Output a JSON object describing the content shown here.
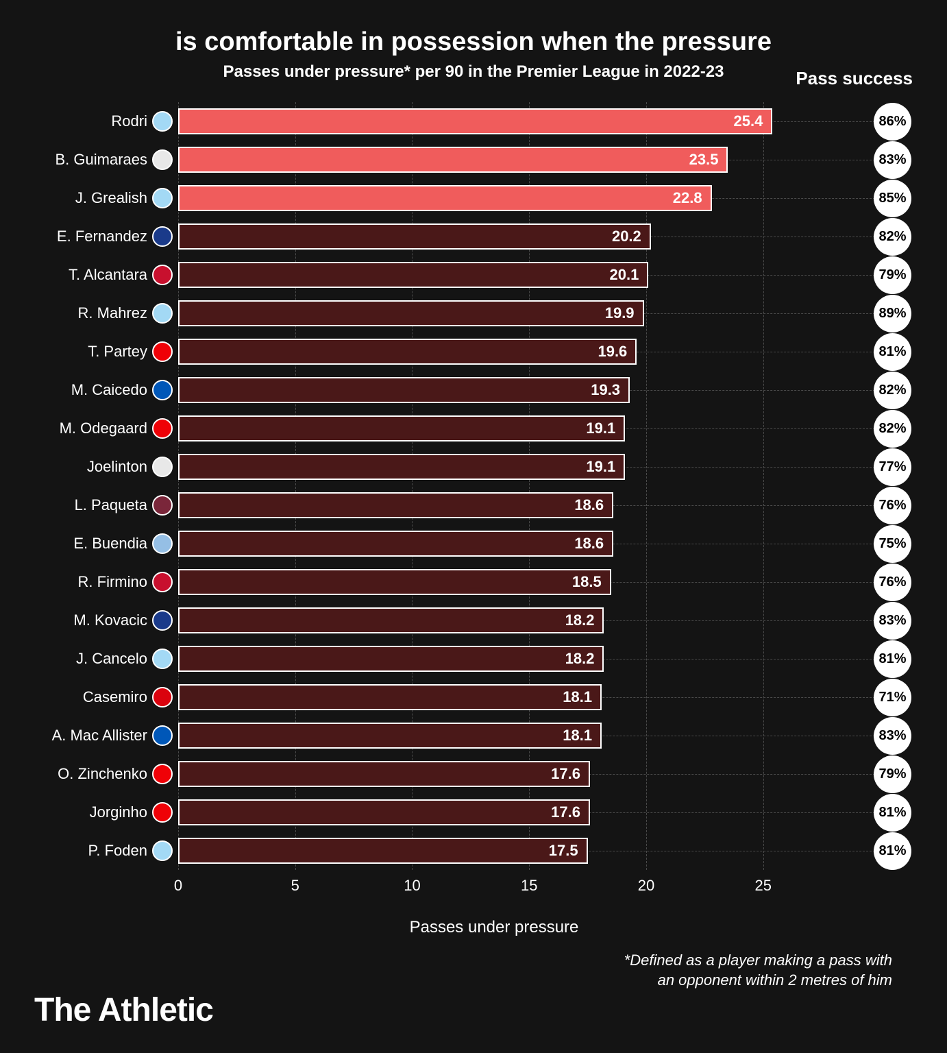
{
  "chart": {
    "type": "bar",
    "title": "is comfortable in possession when the pressure",
    "subtitle": "Passes under pressure* per 90 in the Premier League in 2022-23",
    "pass_success_header": "Pass success",
    "x_axis_label": "Passes under pressure",
    "footnote_line1": "*Defined as a player making a pass with",
    "footnote_line2": "an opponent within 2 metres of him",
    "brand": "The Athletic",
    "xlim": [
      0,
      27
    ],
    "xticks": [
      0,
      5,
      10,
      15,
      20,
      25
    ],
    "background_color": "#141414",
    "grid_color": "#4a4a4a",
    "bar_border_color": "#ffffff",
    "highlight_color": "#f05c5c",
    "normal_color": "#4a1818",
    "success_badge_bg": "#ffffff",
    "success_badge_text": "#000000",
    "title_fontsize": 38,
    "subtitle_fontsize": 24,
    "label_fontsize": 22,
    "players": [
      {
        "name": "Rodri",
        "value": 25.4,
        "pass_success": "86%",
        "highlighted": true,
        "club_color": "#a3d9f5"
      },
      {
        "name": "B. Guimaraes",
        "value": 23.5,
        "pass_success": "83%",
        "highlighted": true,
        "club_color": "#e8e8e8"
      },
      {
        "name": "J. Grealish",
        "value": 22.8,
        "pass_success": "85%",
        "highlighted": true,
        "club_color": "#a3d9f5"
      },
      {
        "name": "E. Fernandez",
        "value": 20.2,
        "pass_success": "82%",
        "highlighted": false,
        "club_color": "#1a3a8a"
      },
      {
        "name": "T. Alcantara",
        "value": 20.1,
        "pass_success": "79%",
        "highlighted": false,
        "club_color": "#c8102e"
      },
      {
        "name": "R. Mahrez",
        "value": 19.9,
        "pass_success": "89%",
        "highlighted": false,
        "club_color": "#a3d9f5"
      },
      {
        "name": "T. Partey",
        "value": 19.6,
        "pass_success": "81%",
        "highlighted": false,
        "club_color": "#ef0107"
      },
      {
        "name": "M. Caicedo",
        "value": 19.3,
        "pass_success": "82%",
        "highlighted": false,
        "club_color": "#0057b8"
      },
      {
        "name": "M. Odegaard",
        "value": 19.1,
        "pass_success": "82%",
        "highlighted": false,
        "club_color": "#ef0107"
      },
      {
        "name": "Joelinton",
        "value": 19.1,
        "pass_success": "77%",
        "highlighted": false,
        "club_color": "#e8e8e8"
      },
      {
        "name": "L. Paqueta",
        "value": 18.6,
        "pass_success": "76%",
        "highlighted": false,
        "club_color": "#7a263a"
      },
      {
        "name": "E. Buendia",
        "value": 18.6,
        "pass_success": "75%",
        "highlighted": false,
        "club_color": "#95bfe5"
      },
      {
        "name": "R. Firmino",
        "value": 18.5,
        "pass_success": "76%",
        "highlighted": false,
        "club_color": "#c8102e"
      },
      {
        "name": "M. Kovacic",
        "value": 18.2,
        "pass_success": "83%",
        "highlighted": false,
        "club_color": "#1a3a8a"
      },
      {
        "name": "J. Cancelo",
        "value": 18.2,
        "pass_success": "81%",
        "highlighted": false,
        "club_color": "#a3d9f5"
      },
      {
        "name": "Casemiro",
        "value": 18.1,
        "pass_success": "71%",
        "highlighted": false,
        "club_color": "#da020e"
      },
      {
        "name": "A. Mac Allister",
        "value": 18.1,
        "pass_success": "83%",
        "highlighted": false,
        "club_color": "#0057b8"
      },
      {
        "name": "O. Zinchenko",
        "value": 17.6,
        "pass_success": "79%",
        "highlighted": false,
        "club_color": "#ef0107"
      },
      {
        "name": "Jorginho",
        "value": 17.6,
        "pass_success": "81%",
        "highlighted": false,
        "club_color": "#ef0107"
      },
      {
        "name": "P. Foden",
        "value": 17.5,
        "pass_success": "81%",
        "highlighted": false,
        "club_color": "#a3d9f5"
      }
    ]
  }
}
